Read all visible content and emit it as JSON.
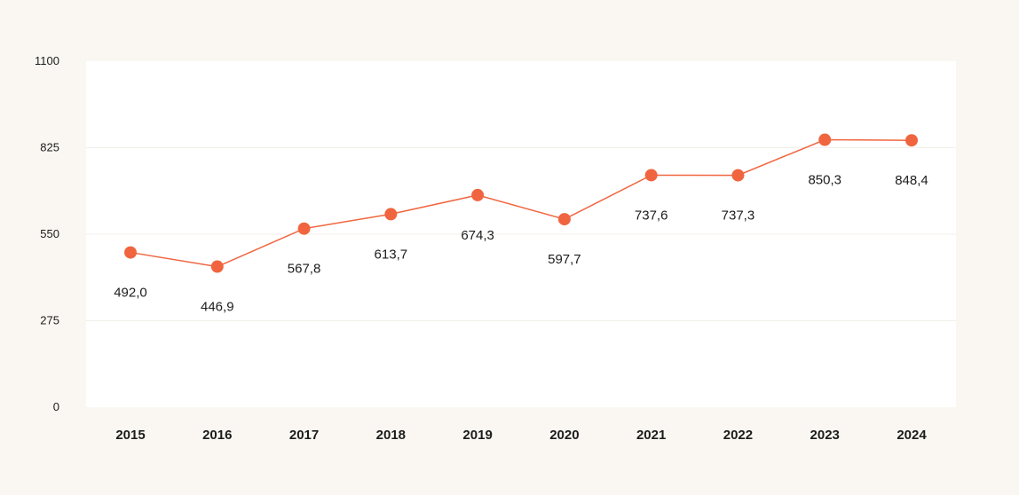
{
  "chart_data": {
    "type": "line",
    "title": "",
    "xlabel": "",
    "ylabel": "",
    "categories": [
      "2015",
      "2016",
      "2017",
      "2018",
      "2019",
      "2020",
      "2021",
      "2022",
      "2023",
      "2024"
    ],
    "series": [
      {
        "values": [
          492.0,
          446.9,
          567.8,
          613.7,
          674.3,
          597.7,
          737.6,
          737.3,
          850.3,
          848.4
        ],
        "labels": [
          "492,0",
          "446,9",
          "567,8",
          "613,7",
          "674,3",
          "597,7",
          "737,6",
          "737,3",
          "850,3",
          "848,4"
        ],
        "color": "#f0653f"
      }
    ],
    "ylim": [
      0,
      1100
    ],
    "yticks": [
      0,
      275,
      550,
      825,
      1100
    ],
    "ytick_labels": [
      "0",
      "275",
      "550",
      "825",
      "1100"
    ],
    "grid": true,
    "legend": "none",
    "plot_background": "#ffffff",
    "page_background": "#faf7f2",
    "gridline_color": "#f3efe9"
  }
}
